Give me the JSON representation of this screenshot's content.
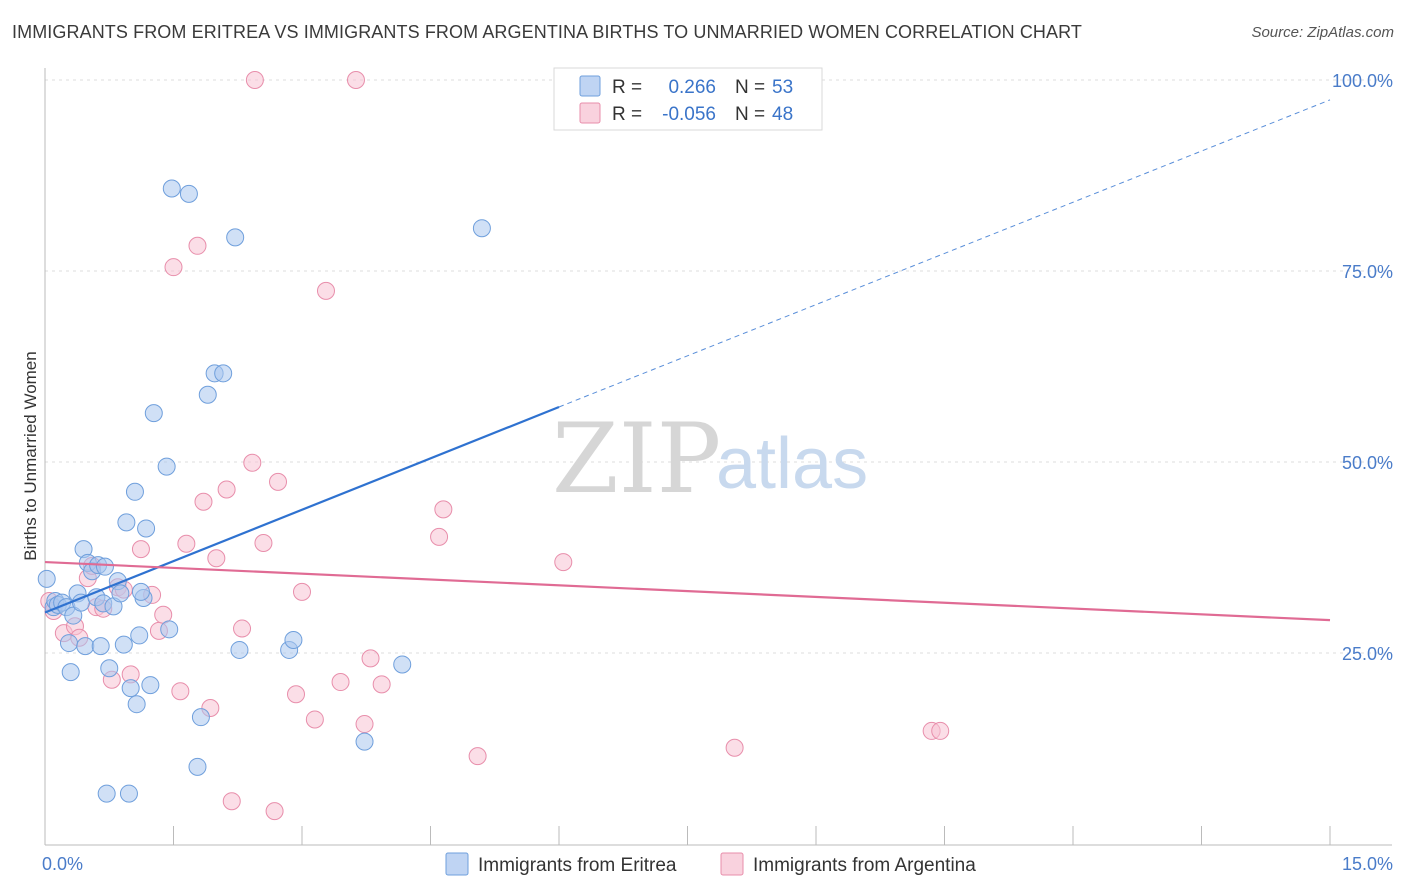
{
  "header": {
    "title": "IMMIGRANTS FROM ERITREA VS IMMIGRANTS FROM ARGENTINA BIRTHS TO UNMARRIED WOMEN CORRELATION CHART",
    "source": "Source: ZipAtlas.com"
  },
  "watermark": {
    "zip": "ZIP",
    "atlas": "atlas"
  },
  "legend": {
    "series": [
      {
        "r_label": "R =",
        "r_value": "0.266",
        "n_label": "N =",
        "n_value": "53"
      },
      {
        "r_label": "R =",
        "r_value": "-0.056",
        "n_label": "N =",
        "n_value": "48"
      }
    ]
  },
  "bottom_legend": {
    "items": [
      {
        "label": "Immigrants from Eritrea"
      },
      {
        "label": "Immigrants from Argentina"
      }
    ]
  },
  "colors": {
    "eritrea_fill": "#a9c6ef",
    "eritrea_stroke": "#6f9fdc",
    "eritrea_line": "#2f72d0",
    "argentina_fill": "#f7c3d3",
    "argentina_stroke": "#e88eab",
    "argentina_line": "#e06b94",
    "tick_text": "#4a7cc9"
  },
  "chart_data": {
    "type": "scatter",
    "title": "IMMIGRANTS FROM ERITREA VS IMMIGRANTS FROM ARGENTINA BIRTHS TO UNMARRIED WOMEN CORRELATION CHART",
    "xlabel": "",
    "ylabel": "Births to Unmarried Women",
    "xlim": [
      0,
      15
    ],
    "ylim": [
      0,
      102
    ],
    "x_tick_labels": [
      {
        "value": 0,
        "label": "0.0%"
      },
      {
        "value": 15,
        "label": "15.0%"
      }
    ],
    "y_tick_labels": [
      {
        "value": 25,
        "label": "25.0%"
      },
      {
        "value": 50,
        "label": "50.0%"
      },
      {
        "value": 75,
        "label": "75.0%"
      },
      {
        "value": 100,
        "label": "100.0%"
      }
    ],
    "grid": true,
    "series": [
      {
        "name": "Immigrants from Eritrea",
        "r": 0.266,
        "n": 53,
        "trend": {
          "x0": 0,
          "y0": 30.3,
          "x1": 6.0,
          "y1": 57.2,
          "x_dash_end": 15,
          "y_dash_end": 97.4
        },
        "points": [
          [
            0.02,
            34.7
          ],
          [
            0.1,
            31.0
          ],
          [
            0.12,
            31.8
          ],
          [
            0.15,
            31.3
          ],
          [
            0.2,
            31.6
          ],
          [
            0.25,
            31.0
          ],
          [
            0.28,
            26.3
          ],
          [
            0.3,
            22.5
          ],
          [
            0.33,
            29.9
          ],
          [
            0.38,
            32.8
          ],
          [
            0.42,
            31.6
          ],
          [
            0.45,
            38.6
          ],
          [
            0.47,
            25.9
          ],
          [
            0.5,
            36.8
          ],
          [
            0.55,
            35.7
          ],
          [
            0.6,
            32.3
          ],
          [
            0.62,
            36.5
          ],
          [
            0.65,
            25.9
          ],
          [
            0.68,
            31.5
          ],
          [
            0.7,
            36.3
          ],
          [
            0.75,
            23.0
          ],
          [
            0.8,
            31.1
          ],
          [
            0.85,
            34.4
          ],
          [
            0.88,
            32.8
          ],
          [
            0.92,
            26.1
          ],
          [
            0.95,
            42.1
          ],
          [
            1.0,
            20.4
          ],
          [
            1.05,
            46.1
          ],
          [
            1.07,
            18.3
          ],
          [
            1.1,
            27.3
          ],
          [
            1.15,
            32.2
          ],
          [
            1.18,
            41.3
          ],
          [
            1.23,
            20.8
          ],
          [
            1.27,
            56.4
          ],
          [
            1.42,
            49.4
          ],
          [
            1.45,
            28.1
          ],
          [
            1.48,
            85.8
          ],
          [
            1.68,
            85.1
          ],
          [
            1.78,
            10.1
          ],
          [
            1.82,
            16.6
          ],
          [
            1.9,
            58.8
          ],
          [
            1.98,
            61.6
          ],
          [
            2.08,
            61.6
          ],
          [
            2.22,
            79.4
          ],
          [
            2.27,
            25.4
          ],
          [
            2.85,
            25.4
          ],
          [
            2.9,
            26.7
          ],
          [
            3.73,
            13.4
          ],
          [
            4.17,
            23.5
          ],
          [
            5.1,
            80.6
          ],
          [
            0.72,
            6.6
          ],
          [
            0.98,
            6.6
          ],
          [
            1.12,
            33.0
          ]
        ]
      },
      {
        "name": "Immigrants from Argentina",
        "r": -0.056,
        "n": 48,
        "trend": {
          "x0": 0,
          "y0": 36.9,
          "x1": 15,
          "y1": 29.3
        },
        "points": [
          [
            0.05,
            31.8
          ],
          [
            0.1,
            30.5
          ],
          [
            0.22,
            27.6
          ],
          [
            0.35,
            28.5
          ],
          [
            0.4,
            27.0
          ],
          [
            0.5,
            34.8
          ],
          [
            0.55,
            36.4
          ],
          [
            0.6,
            31.0
          ],
          [
            0.68,
            30.8
          ],
          [
            0.78,
            21.5
          ],
          [
            0.85,
            33.6
          ],
          [
            0.92,
            33.3
          ],
          [
            1.0,
            22.2
          ],
          [
            1.12,
            38.6
          ],
          [
            1.25,
            32.6
          ],
          [
            1.33,
            27.9
          ],
          [
            1.38,
            30.0
          ],
          [
            1.5,
            75.5
          ],
          [
            1.58,
            20.0
          ],
          [
            1.65,
            39.3
          ],
          [
            1.78,
            78.3
          ],
          [
            1.85,
            44.8
          ],
          [
            1.93,
            17.8
          ],
          [
            2.0,
            37.4
          ],
          [
            2.12,
            46.4
          ],
          [
            2.18,
            5.6
          ],
          [
            2.3,
            28.2
          ],
          [
            2.42,
            49.9
          ],
          [
            2.45,
            100.0
          ],
          [
            2.55,
            39.4
          ],
          [
            2.68,
            4.3
          ],
          [
            2.72,
            47.4
          ],
          [
            2.93,
            19.6
          ],
          [
            3.0,
            33.0
          ],
          [
            3.15,
            16.3
          ],
          [
            3.28,
            72.4
          ],
          [
            3.45,
            21.2
          ],
          [
            3.63,
            100.0
          ],
          [
            3.73,
            15.7
          ],
          [
            3.8,
            24.3
          ],
          [
            3.93,
            20.9
          ],
          [
            4.6,
            40.2
          ],
          [
            4.65,
            43.8
          ],
          [
            5.05,
            11.5
          ],
          [
            6.05,
            36.9
          ],
          [
            8.05,
            12.6
          ],
          [
            10.35,
            14.8
          ],
          [
            10.45,
            14.8
          ]
        ]
      }
    ]
  }
}
